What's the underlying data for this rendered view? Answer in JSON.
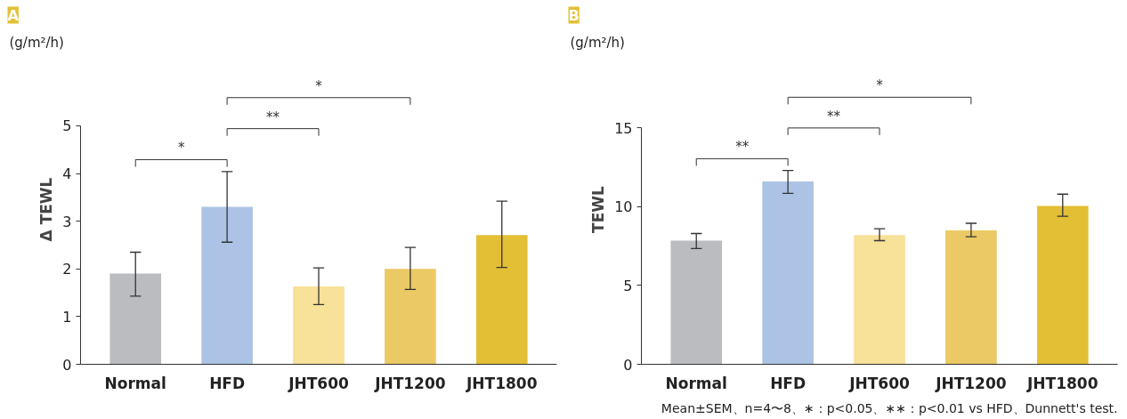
{
  "chart_data": [
    {
      "type": "bar",
      "title": "A",
      "ylabel": "Δ TEWL",
      "categories": [
        "Normal",
        "HFD",
        "JHT600",
        "JHT1200",
        "JHT1800"
      ],
      "values": [
        1.9,
        3.3,
        1.63,
        2.0,
        2.71
      ],
      "colors": [
        "#bbbcc0",
        "#adc3e5",
        "#f8e198",
        "#ebc964",
        "#e3bf35"
      ],
      "errors": [
        [
          1.43,
          2.35
        ],
        [
          2.56,
          4.04
        ],
        [
          1.25,
          2.02
        ],
        [
          1.57,
          2.45
        ],
        [
          2.03,
          3.42
        ]
      ],
      "ylim": [
        0,
        5
      ],
      "yticks": [
        0,
        1,
        2,
        3,
        4,
        5
      ],
      "grid": false,
      "annotations": [
        "(g/m²/h)",
        "*",
        "**",
        "*"
      ]
    },
    {
      "type": "bar",
      "title": "B",
      "ylabel": "TEWL",
      "categories": [
        "Normal",
        "HFD",
        "JHT600",
        "JHT1200",
        "JHT1800"
      ],
      "values": [
        7.85,
        11.6,
        8.2,
        8.5,
        10.05
      ],
      "colors": [
        "#bbbcc0",
        "#adc3e5",
        "#f8e198",
        "#ebc964",
        "#e3bf35"
      ],
      "errors": [
        [
          7.35,
          8.3
        ],
        [
          10.85,
          12.3
        ],
        [
          7.85,
          8.6
        ],
        [
          8.1,
          8.95
        ],
        [
          9.4,
          10.8
        ]
      ],
      "ylim": [
        0,
        15
      ],
      "yticks": [
        0,
        5,
        10,
        15
      ],
      "grid": false,
      "annotations": [
        "(g/m²/h)",
        "**",
        "**",
        "*",
        "Mean±SEM、n=4〜8、∗：p<0.05、∗∗：p<0.01 vs HFD、Dunnett's test."
      ]
    }
  ]
}
